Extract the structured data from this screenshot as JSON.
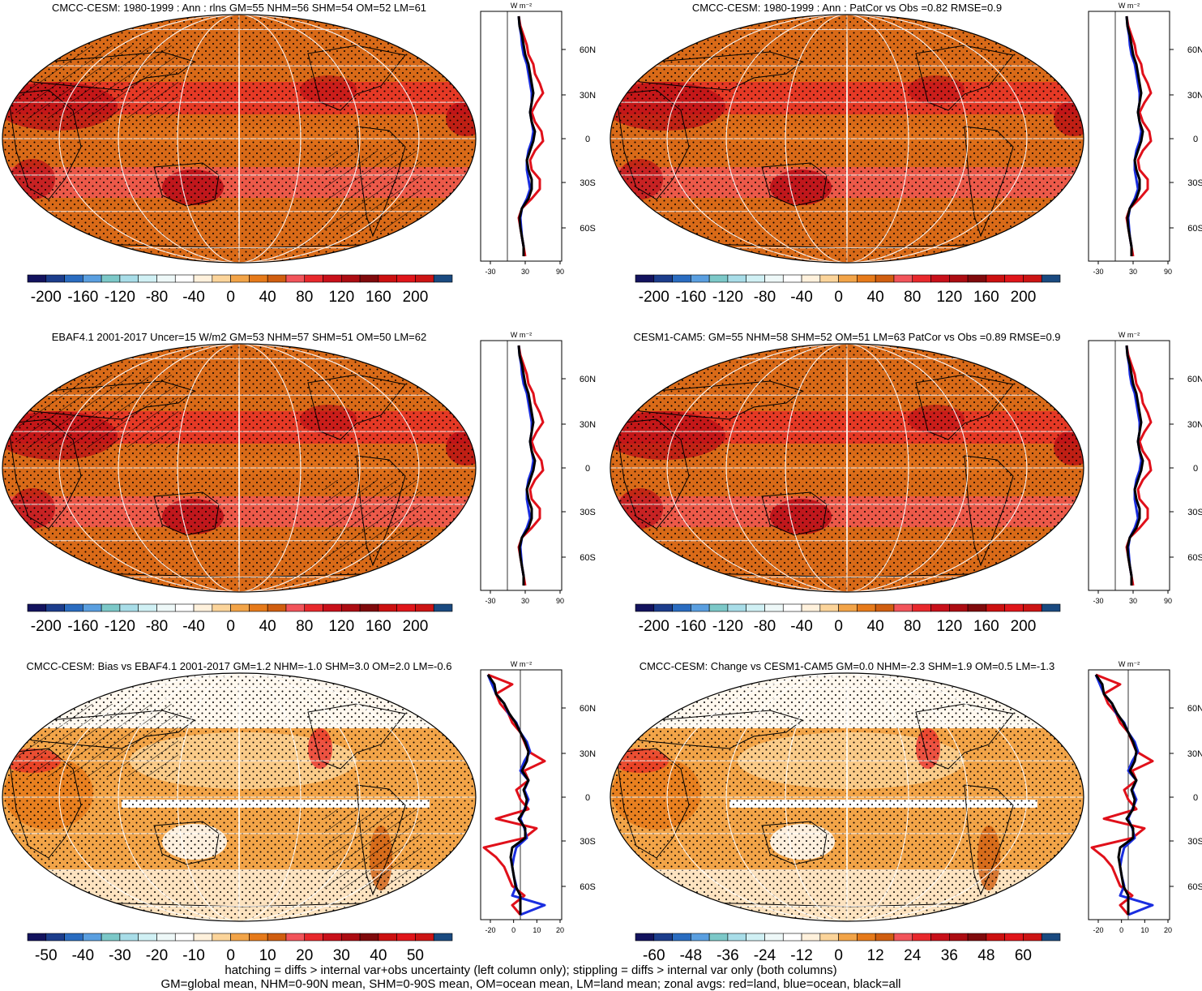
{
  "units_label": "W m⁻²",
  "footer": {
    "line1": "hatching = diffs > internal var+obs uncertainty (left column only); stippling = diffs > internal var only (both columns)",
    "line2": "GM=global mean, NHM=0-90N mean, SHM=0-90S mean, OM=ocean mean, LM=land mean; zonal avgs: red=land, blue=ocean, black=all"
  },
  "lat_labels": [
    "60N",
    "30N",
    "0",
    "30S",
    "60S"
  ],
  "colors": {
    "land_line": "#e0101a",
    "ocean_line": "#1a2ee0",
    "all_line": "#000000",
    "base_orange": "#d96a18",
    "warm_red": "#e82a2a",
    "dark_red": "#b80c14",
    "pink": "#f2545a"
  },
  "colorbar_colors": [
    "#13135e",
    "#1c3d8c",
    "#2a6cc0",
    "#5a9fe0",
    "#7cc8c8",
    "#a8dde8",
    "#d0f0f4",
    "#eef8f8",
    "#ffffff",
    "#fff1dc",
    "#fbd49a",
    "#f2a448",
    "#e67a1a",
    "#d05e10",
    "#f2545a",
    "#e8282c",
    "#c8101a",
    "#ac0c12",
    "#800a0c",
    "#cc1010",
    "#e0151a",
    "#cc1414",
    "#1a4a80"
  ],
  "panels": [
    {
      "id": "model-climatology",
      "title": "CMCC-CESM: 1980-1999 : Ann : rlns GM=55 NHM=56 SHM=54 OM=52 LM=61",
      "colorbar_labels": [
        "-200",
        "-160",
        "-120",
        "-80",
        "-40",
        "0",
        "40",
        "80",
        "120",
        "160",
        "200"
      ],
      "zonal_xticks": [
        "-30",
        "30",
        "90"
      ],
      "hatching": true,
      "kind": "clim"
    },
    {
      "id": "model-vs-obs",
      "title": "CMCC-CESM: 1980-1999 : Ann : PatCor vs Obs =0.82 RMSE=0.9",
      "colorbar_labels": [
        "-200",
        "-160",
        "-120",
        "-80",
        "-40",
        "0",
        "40",
        "80",
        "120",
        "160",
        "200"
      ],
      "zonal_xticks": [
        "-30",
        "30",
        "90"
      ],
      "hatching": false,
      "kind": "clim"
    },
    {
      "id": "observations",
      "title": "EBAF4.1 2001-2017 Uncer=15 W/m2 GM=53 NHM=57 SHM=51 OM=50 LM=62",
      "colorbar_labels": [
        "-200",
        "-160",
        "-120",
        "-80",
        "-40",
        "0",
        "40",
        "80",
        "120",
        "160",
        "200"
      ],
      "zonal_xticks": [
        "-30",
        "30",
        "90"
      ],
      "hatching": true,
      "kind": "clim"
    },
    {
      "id": "reference-model",
      "title": "CESM1-CAM5: GM=55 NHM=58 SHM=52 OM=51 LM=63 PatCor vs Obs =0.89 RMSE=0.9",
      "colorbar_labels": [
        "-200",
        "-160",
        "-120",
        "-80",
        "-40",
        "0",
        "40",
        "80",
        "120",
        "160",
        "200"
      ],
      "zonal_xticks": [
        "-30",
        "30",
        "90"
      ],
      "hatching": false,
      "kind": "clim"
    },
    {
      "id": "bias",
      "title": "CMCC-CESM: Bias vs EBAF4.1 2001-2017 GM=1.2 NHM=-1.0 SHM=3.0 OM=2.0 LM=-0.6",
      "colorbar_labels": [
        "-50",
        "-40",
        "-30",
        "-20",
        "-10",
        "0",
        "10",
        "20",
        "30",
        "40",
        "50"
      ],
      "zonal_xticks": [
        "-20",
        "0",
        "10",
        "20"
      ],
      "hatching": true,
      "kind": "diff"
    },
    {
      "id": "change",
      "title": "CMCC-CESM: Change vs CESM1-CAM5 GM=0.0 NHM=-2.3 SHM=1.9 OM=0.5 LM=-1.3",
      "colorbar_labels": [
        "-60",
        "-48",
        "-36",
        "-24",
        "-12",
        "0",
        "12",
        "24",
        "36",
        "48",
        "60"
      ],
      "zonal_xticks": [
        "-20",
        "0",
        "10",
        "20"
      ],
      "hatching": false,
      "kind": "diff"
    }
  ]
}
